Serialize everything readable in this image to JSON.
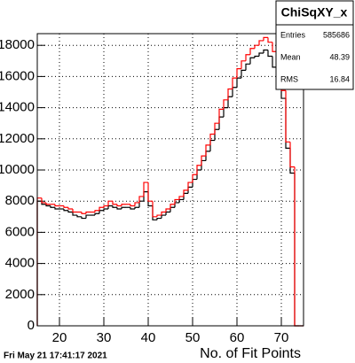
{
  "chart_data": {
    "type": "histogram",
    "x_label": "No. of Fit Points",
    "footer": "Fri May 21 17:41:17 2021",
    "bins": [
      15,
      16,
      17,
      18,
      19,
      20,
      21,
      22,
      23,
      24,
      25,
      26,
      27,
      28,
      29,
      30,
      31,
      32,
      33,
      34,
      35,
      36,
      37,
      38,
      39,
      40,
      41,
      42,
      43,
      44,
      45,
      46,
      47,
      48,
      49,
      50,
      51,
      52,
      53,
      54,
      55,
      56,
      57,
      58,
      59,
      60,
      61,
      62,
      63,
      64,
      65,
      66,
      67,
      68,
      69,
      70,
      71,
      72,
      73,
      74,
      75
    ],
    "series": [
      {
        "color": "#000000",
        "values": [
          8000,
          7800,
          7700,
          7600,
          7500,
          7500,
          7400,
          7300,
          7100,
          7000,
          6900,
          7100,
          7100,
          7200,
          7400,
          7500,
          7700,
          7600,
          7500,
          7600,
          7600,
          7500,
          7600,
          8000,
          8600,
          7700,
          6800,
          6900,
          7100,
          7300,
          7600,
          7900,
          8100,
          8500,
          8900,
          9400,
          10000,
          10600,
          11200,
          11900,
          12600,
          13400,
          14000,
          14700,
          15300,
          15900,
          16400,
          16800,
          17200,
          17300,
          17500,
          17700,
          17300,
          16600,
          15800,
          14600,
          11400,
          9800,
          0,
          0
        ]
      },
      {
        "color": "#ff0000",
        "values": [
          8200,
          7900,
          7800,
          7800,
          7700,
          7700,
          7600,
          7500,
          7300,
          7300,
          7200,
          7300,
          7300,
          7400,
          7600,
          7700,
          8000,
          7800,
          7700,
          7800,
          7800,
          7700,
          7900,
          8300,
          9200,
          8000,
          7000,
          7100,
          7300,
          7500,
          7800,
          8100,
          8300,
          8700,
          9200,
          9700,
          10300,
          10900,
          11600,
          12300,
          13000,
          13900,
          14500,
          15200,
          15900,
          16500,
          17000,
          17400,
          17800,
          18000,
          18300,
          18500,
          18200,
          17600,
          16800,
          15100,
          11800,
          10200,
          0,
          0
        ]
      }
    ],
    "xlim": [
      15,
      75
    ],
    "ylim": [
      0,
      18750
    ],
    "xticks": [
      20,
      30,
      40,
      50,
      60,
      70
    ],
    "yticks": [
      0,
      2000,
      4000,
      6000,
      8000,
      10000,
      12000,
      14000,
      16000,
      18000
    ],
    "grid": true,
    "stats": {
      "title": "ChiSqXY_x",
      "rows": [
        [
          "Entries",
          "585686"
        ],
        [
          "Mean",
          "48.39"
        ],
        [
          "RMS",
          "16.84"
        ]
      ]
    }
  }
}
